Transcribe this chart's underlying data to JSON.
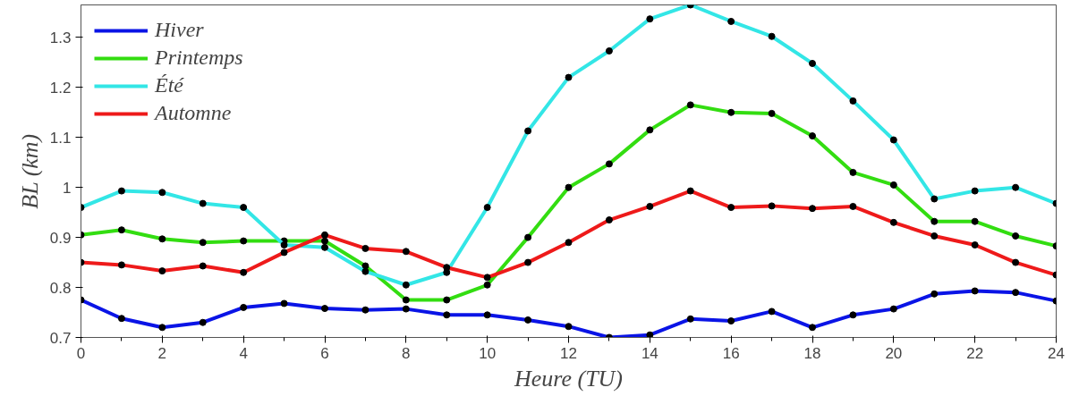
{
  "chart_data": {
    "type": "line",
    "xlabel": "Heure (TU)",
    "ylabel": "BL (km)",
    "x": [
      0,
      1,
      2,
      3,
      4,
      5,
      6,
      7,
      8,
      9,
      10,
      11,
      12,
      13,
      14,
      15,
      16,
      17,
      18,
      19,
      20,
      21,
      22,
      23,
      24
    ],
    "xlim": [
      0,
      24
    ],
    "xticks": [
      0,
      2,
      4,
      6,
      8,
      10,
      12,
      14,
      16,
      18,
      20,
      22,
      24
    ],
    "ylim": [
      0.7,
      1.365
    ],
    "yticks": [
      0.7,
      0.8,
      0.9,
      1,
      1.1,
      1.2,
      1.3
    ],
    "grid": false,
    "legend": "top left",
    "marker": "circle",
    "line_style": "solid",
    "series": [
      {
        "name": "Hiver",
        "color": "#0a14e6",
        "values": [
          0.775,
          0.738,
          0.72,
          0.73,
          0.76,
          0.768,
          0.758,
          0.755,
          0.757,
          0.745,
          0.745,
          0.735,
          0.722,
          0.7,
          0.705,
          0.737,
          0.733,
          0.752,
          0.72,
          0.745,
          0.757,
          0.787,
          0.793,
          0.79,
          0.773
        ]
      },
      {
        "name": "Printemps",
        "color": "#33dd11",
        "values": [
          0.905,
          0.915,
          0.897,
          0.89,
          0.893,
          0.893,
          0.893,
          0.843,
          0.775,
          0.775,
          0.805,
          0.9,
          1.0,
          1.047,
          1.115,
          1.165,
          1.15,
          1.148,
          1.103,
          1.03,
          1.005,
          0.932,
          0.932,
          0.903,
          0.883
        ]
      },
      {
        "name": "Été",
        "color": "#33e6e6",
        "values": [
          0.96,
          0.993,
          0.99,
          0.968,
          0.96,
          0.885,
          0.88,
          0.832,
          0.805,
          0.83,
          0.96,
          1.113,
          1.22,
          1.273,
          1.337,
          1.365,
          1.332,
          1.302,
          1.248,
          1.173,
          1.095,
          0.977,
          0.993,
          1.0,
          0.968
        ]
      },
      {
        "name": "Automne",
        "color": "#ee1a1a",
        "values": [
          0.85,
          0.845,
          0.833,
          0.843,
          0.83,
          0.87,
          0.905,
          0.878,
          0.872,
          0.84,
          0.82,
          0.85,
          0.89,
          0.935,
          0.962,
          0.993,
          0.96,
          0.963,
          0.958,
          0.962,
          0.93,
          0.903,
          0.885,
          0.85,
          0.825
        ]
      }
    ]
  }
}
